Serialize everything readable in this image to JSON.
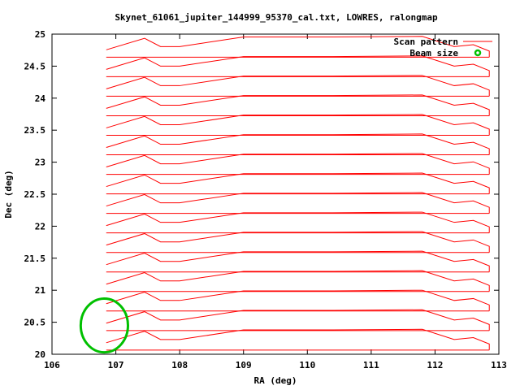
{
  "chart_data": {
    "type": "line",
    "title": "Skynet_61061_jupiter_144999_95370_cal.txt, LOWRES, ralongmap",
    "xlabel": "RA (deg)",
    "ylabel": "Dec (deg)",
    "xlim": [
      106,
      113
    ],
    "ylim": [
      20,
      25
    ],
    "xticks": [
      "106",
      "107",
      "108",
      "109",
      "110",
      "111",
      "112",
      "113"
    ],
    "yticks": [
      "20",
      "20.5",
      "21",
      "21.5",
      "22",
      "22.5",
      "23",
      "23.5",
      "24",
      "24.5",
      "25"
    ],
    "grid": false,
    "legend_position": "top-right",
    "series": [
      {
        "name": "Scan pattern",
        "color": "#ff0000",
        "row_dec_bases": [
          20.065,
          20.37,
          20.675,
          20.98,
          21.285,
          21.59,
          21.895,
          22.2,
          22.505,
          22.81,
          23.115,
          23.42,
          23.725,
          24.03,
          24.335,
          24.64
        ],
        "flat_ra_range": [
          106.85,
          112.85
        ],
        "wave_profile": [
          [
            106.85,
            -0.04
          ],
          [
            107.45,
            0.14
          ],
          [
            107.7,
            0.01
          ],
          [
            108.0,
            0.01
          ],
          [
            109.0,
            0.16
          ],
          [
            110.4,
            0.16
          ],
          [
            111.8,
            0.17
          ],
          [
            112.3,
            0.01
          ],
          [
            112.6,
            0.04
          ],
          [
            112.85,
            -0.06
          ]
        ]
      },
      {
        "name": "Beam size",
        "color": "#00c000",
        "center": [
          106.82,
          20.45
        ],
        "radius_ra": 0.37,
        "radius_dec": 0.42
      }
    ]
  }
}
